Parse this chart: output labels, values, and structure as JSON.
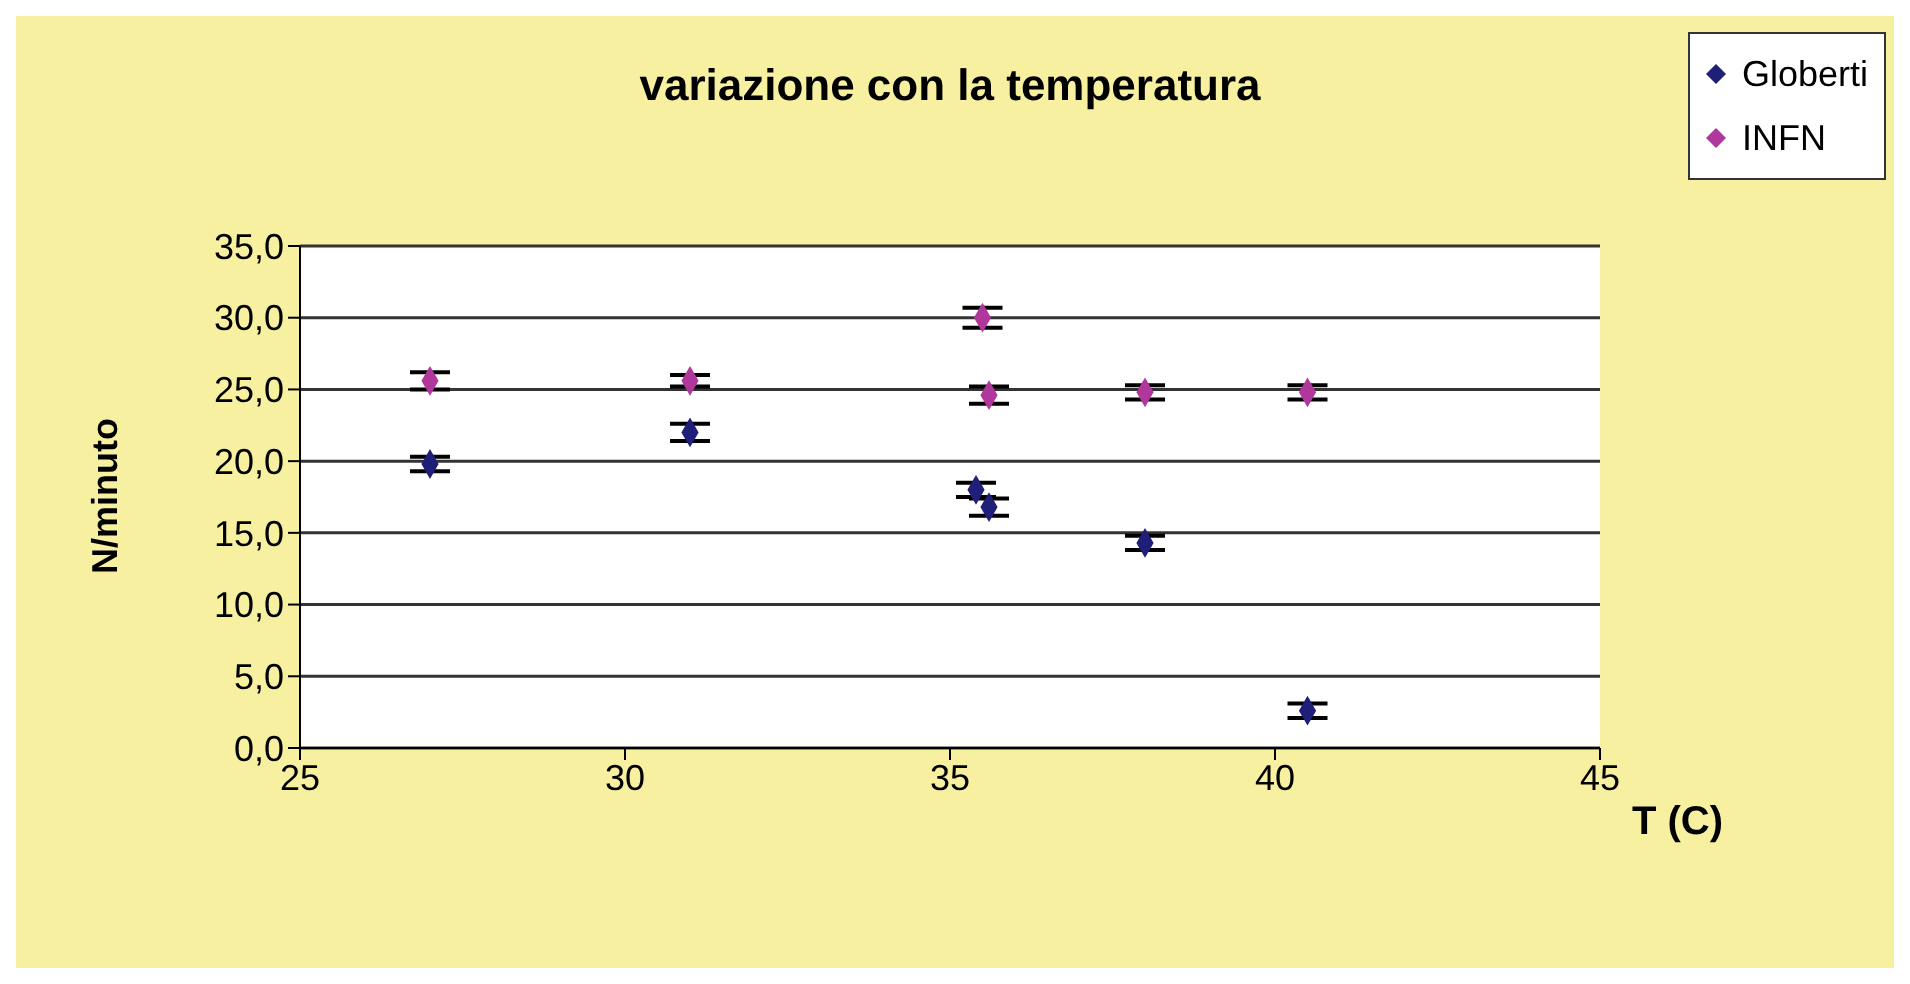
{
  "chart_data": {
    "type": "scatter",
    "title": "variazione con la temperatura",
    "xlabel": "T (C)",
    "ylabel": "N/minuto",
    "xlim": [
      25,
      45
    ],
    "xticks": [
      25,
      30,
      35,
      40,
      45
    ],
    "ylim": [
      0,
      35
    ],
    "yticks": [
      {
        "value": 0,
        "label": "0,0"
      },
      {
        "value": 5,
        "label": "5,0"
      },
      {
        "value": 10,
        "label": "10,0"
      },
      {
        "value": 15,
        "label": "15,0"
      },
      {
        "value": 20,
        "label": "20,0"
      },
      {
        "value": 25,
        "label": "25,0"
      },
      {
        "value": 30,
        "label": "30,0"
      },
      {
        "value": 35,
        "label": "35,0"
      }
    ],
    "grid": "y",
    "legend": "top right",
    "marker": "diamond",
    "series": [
      {
        "name": "Globerti",
        "color": "#1f1f7a",
        "x": [
          27,
          31,
          35.4,
          35.6,
          38,
          40.5
        ],
        "values": [
          19.8,
          22.0,
          18.0,
          16.8,
          14.3,
          2.6
        ],
        "errors": [
          0.5,
          0.6,
          0.5,
          0.6,
          0.5,
          0.5
        ]
      },
      {
        "name": "INFN",
        "color": "#b0389c",
        "x": [
          27,
          31,
          35.5,
          35.6,
          38,
          40.5
        ],
        "values": [
          25.6,
          25.6,
          30.0,
          24.6,
          24.8,
          24.8
        ],
        "errors": [
          0.6,
          0.4,
          0.7,
          0.6,
          0.5,
          0.5
        ]
      }
    ]
  }
}
